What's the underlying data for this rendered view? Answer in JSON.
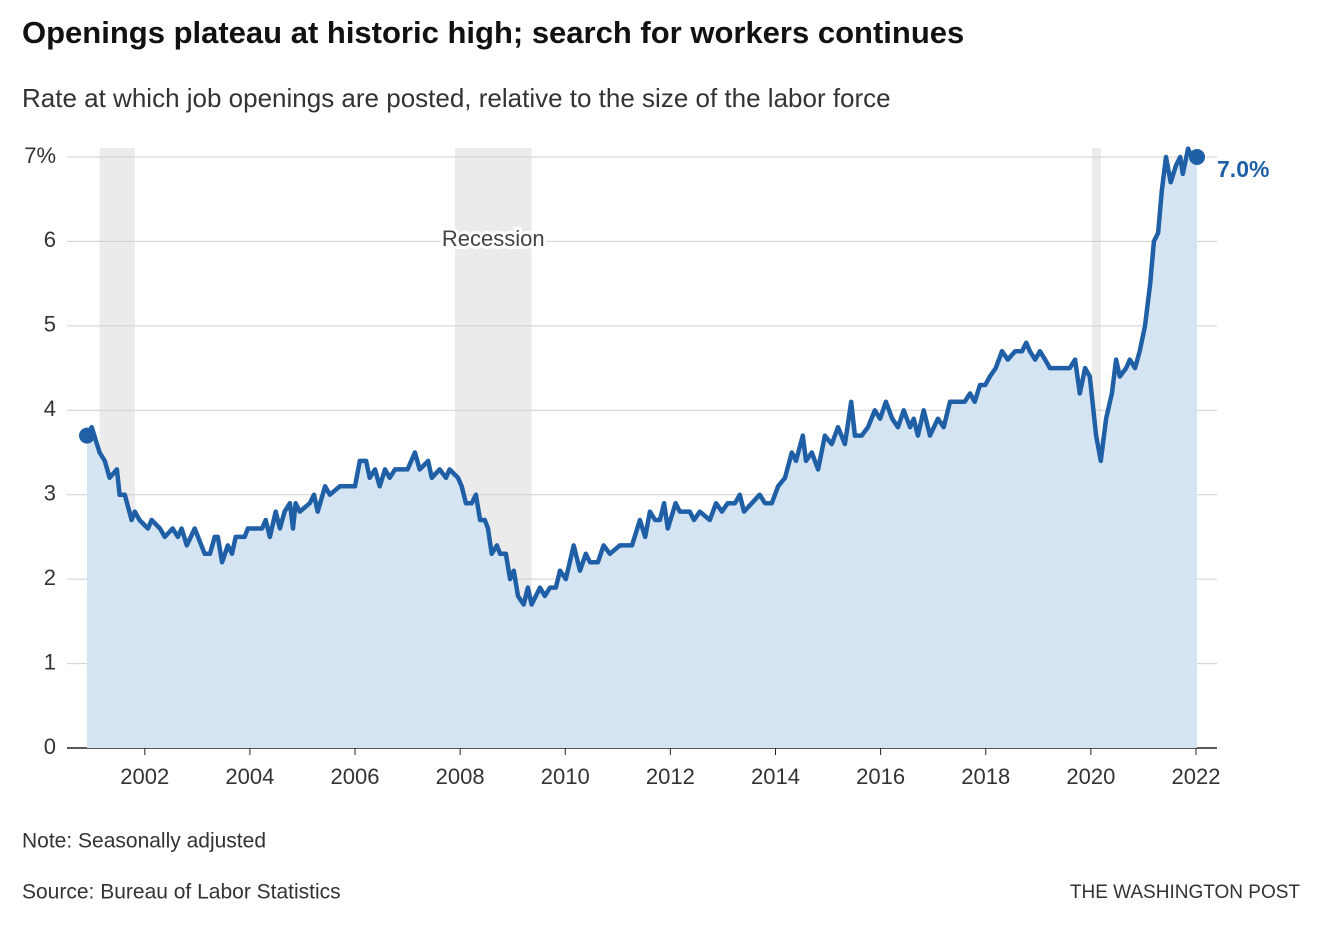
{
  "chart_data": {
    "type": "area-line",
    "title": "Openings plateau at historic high; search for workers continues",
    "subtitle": "Rate at which job openings are posted, relative to the size of the labor force",
    "note": "Note: Seasonally adjusted",
    "source": "Source: Bureau of Labor Statistics",
    "credit": "THE WASHINGTON POST",
    "recession_label": "Recession",
    "recessions": [
      [
        2001.14,
        2001.81
      ],
      [
        2007.9,
        2009.36
      ],
      [
        2020.02,
        2020.19
      ]
    ],
    "end_label": "7.0%",
    "color": "#1f5fa6",
    "area_color": "#d4e4f3",
    "recession_color": "#ebebeb",
    "grid": true,
    "xlim": [
      2000.52,
      2022.4
    ],
    "xticks": [
      2002,
      2004,
      2006,
      2008,
      2010,
      2012,
      2014,
      2016,
      2018,
      2020,
      2022
    ],
    "ylim": [
      0,
      7
    ],
    "yticks": [
      0,
      1,
      2,
      3,
      4,
      5,
      6,
      {
        "value": 7,
        "label": "7%"
      }
    ],
    "x": [
      2000.9,
      2000.99,
      2001.14,
      2001.24,
      2001.33,
      2001.47,
      2001.52,
      2001.62,
      2001.75,
      2001.81,
      2001.9,
      2002.06,
      2002.13,
      2002.29,
      2002.38,
      2002.53,
      2002.63,
      2002.7,
      2002.8,
      2002.95,
      2003.14,
      2003.24,
      2003.33,
      2003.39,
      2003.47,
      2003.58,
      2003.66,
      2003.73,
      2003.9,
      2003.96,
      2004.23,
      2004.3,
      2004.38,
      2004.49,
      2004.57,
      2004.66,
      2004.76,
      2004.82,
      2004.87,
      2004.95,
      2005.14,
      2005.22,
      2005.29,
      2005.43,
      2005.52,
      2005.71,
      2006.0,
      2006.09,
      2006.21,
      2006.28,
      2006.38,
      2006.47,
      2006.57,
      2006.66,
      2006.76,
      2007.0,
      2007.14,
      2007.23,
      2007.39,
      2007.46,
      2007.61,
      2007.73,
      2007.8,
      2007.96,
      2008.03,
      2008.11,
      2008.22,
      2008.3,
      2008.38,
      2008.47,
      2008.53,
      2008.6,
      2008.7,
      2008.76,
      2008.87,
      2008.95,
      2009.02,
      2009.1,
      2009.21,
      2009.29,
      2009.36,
      2009.52,
      2009.61,
      2009.71,
      2009.82,
      2009.9,
      2010.01,
      2010.16,
      2010.28,
      2010.39,
      2010.47,
      2010.62,
      2010.73,
      2010.85,
      2011.04,
      2011.27,
      2011.42,
      2011.52,
      2011.61,
      2011.71,
      2011.8,
      2011.88,
      2011.95,
      2012.1,
      2012.18,
      2012.37,
      2012.45,
      2012.56,
      2012.75,
      2012.87,
      2012.98,
      2013.09,
      2013.23,
      2013.32,
      2013.4,
      2013.55,
      2013.7,
      2013.8,
      2013.93,
      2014.05,
      2014.18,
      2014.31,
      2014.39,
      2014.52,
      2014.58,
      2014.69,
      2014.81,
      2014.94,
      2015.07,
      2015.19,
      2015.32,
      2015.44,
      2015.51,
      2015.64,
      2015.76,
      2015.89,
      2015.99,
      2016.1,
      2016.22,
      2016.33,
      2016.44,
      2016.56,
      2016.63,
      2016.71,
      2016.82,
      2016.94,
      2017.09,
      2017.2,
      2017.32,
      2017.51,
      2017.6,
      2017.7,
      2017.79,
      2017.89,
      2017.99,
      2018.08,
      2018.19,
      2018.31,
      2018.42,
      2018.56,
      2018.69,
      2018.77,
      2018.84,
      2018.94,
      2019.03,
      2019.13,
      2019.22,
      2019.41,
      2019.6,
      2019.7,
      2019.79,
      2019.89,
      2019.98,
      2020.1,
      2020.19,
      2020.29,
      2020.4,
      2020.48,
      2020.55,
      2020.67,
      2020.74,
      2020.84,
      2020.93,
      2021.03,
      2021.13,
      2021.2,
      2021.28,
      2021.35,
      2021.43,
      2021.52,
      2021.62,
      2021.7,
      2021.75,
      2021.85,
      2021.92,
      2022.02
    ],
    "values": [
      3.7,
      3.8,
      3.5,
      3.4,
      3.2,
      3.3,
      3.0,
      3.0,
      2.7,
      2.8,
      2.7,
      2.6,
      2.7,
      2.6,
      2.5,
      2.6,
      2.5,
      2.6,
      2.4,
      2.6,
      2.3,
      2.3,
      2.5,
      2.5,
      2.2,
      2.4,
      2.3,
      2.5,
      2.5,
      2.6,
      2.6,
      2.7,
      2.5,
      2.8,
      2.6,
      2.8,
      2.9,
      2.6,
      2.9,
      2.8,
      2.9,
      3.0,
      2.8,
      3.1,
      3.0,
      3.1,
      3.1,
      3.4,
      3.4,
      3.2,
      3.3,
      3.1,
      3.3,
      3.2,
      3.3,
      3.3,
      3.5,
      3.3,
      3.4,
      3.2,
      3.3,
      3.2,
      3.3,
      3.2,
      3.1,
      2.9,
      2.9,
      3.0,
      2.7,
      2.7,
      2.6,
      2.3,
      2.4,
      2.3,
      2.3,
      2.0,
      2.1,
      1.8,
      1.7,
      1.9,
      1.7,
      1.9,
      1.8,
      1.9,
      1.9,
      2.1,
      2.0,
      2.4,
      2.1,
      2.3,
      2.2,
      2.2,
      2.4,
      2.3,
      2.4,
      2.4,
      2.7,
      2.5,
      2.8,
      2.7,
      2.7,
      2.9,
      2.6,
      2.9,
      2.8,
      2.8,
      2.7,
      2.8,
      2.7,
      2.9,
      2.8,
      2.9,
      2.9,
      3.0,
      2.8,
      2.9,
      3.0,
      2.9,
      2.9,
      3.1,
      3.2,
      3.5,
      3.4,
      3.7,
      3.4,
      3.5,
      3.3,
      3.7,
      3.6,
      3.8,
      3.6,
      4.1,
      3.7,
      3.7,
      3.8,
      4.0,
      3.9,
      4.1,
      3.9,
      3.8,
      4.0,
      3.8,
      3.9,
      3.7,
      4.0,
      3.7,
      3.9,
      3.8,
      4.1,
      4.1,
      4.1,
      4.2,
      4.1,
      4.3,
      4.3,
      4.4,
      4.5,
      4.7,
      4.6,
      4.7,
      4.7,
      4.8,
      4.7,
      4.6,
      4.7,
      4.6,
      4.5,
      4.5,
      4.5,
      4.6,
      4.2,
      4.5,
      4.4,
      3.7,
      3.4,
      3.9,
      4.2,
      4.6,
      4.4,
      4.5,
      4.6,
      4.5,
      4.7,
      5.0,
      5.5,
      6.0,
      6.1,
      6.6,
      7.0,
      6.7,
      6.9,
      7.0,
      6.8,
      7.1,
      7.0,
      7.0
    ]
  }
}
